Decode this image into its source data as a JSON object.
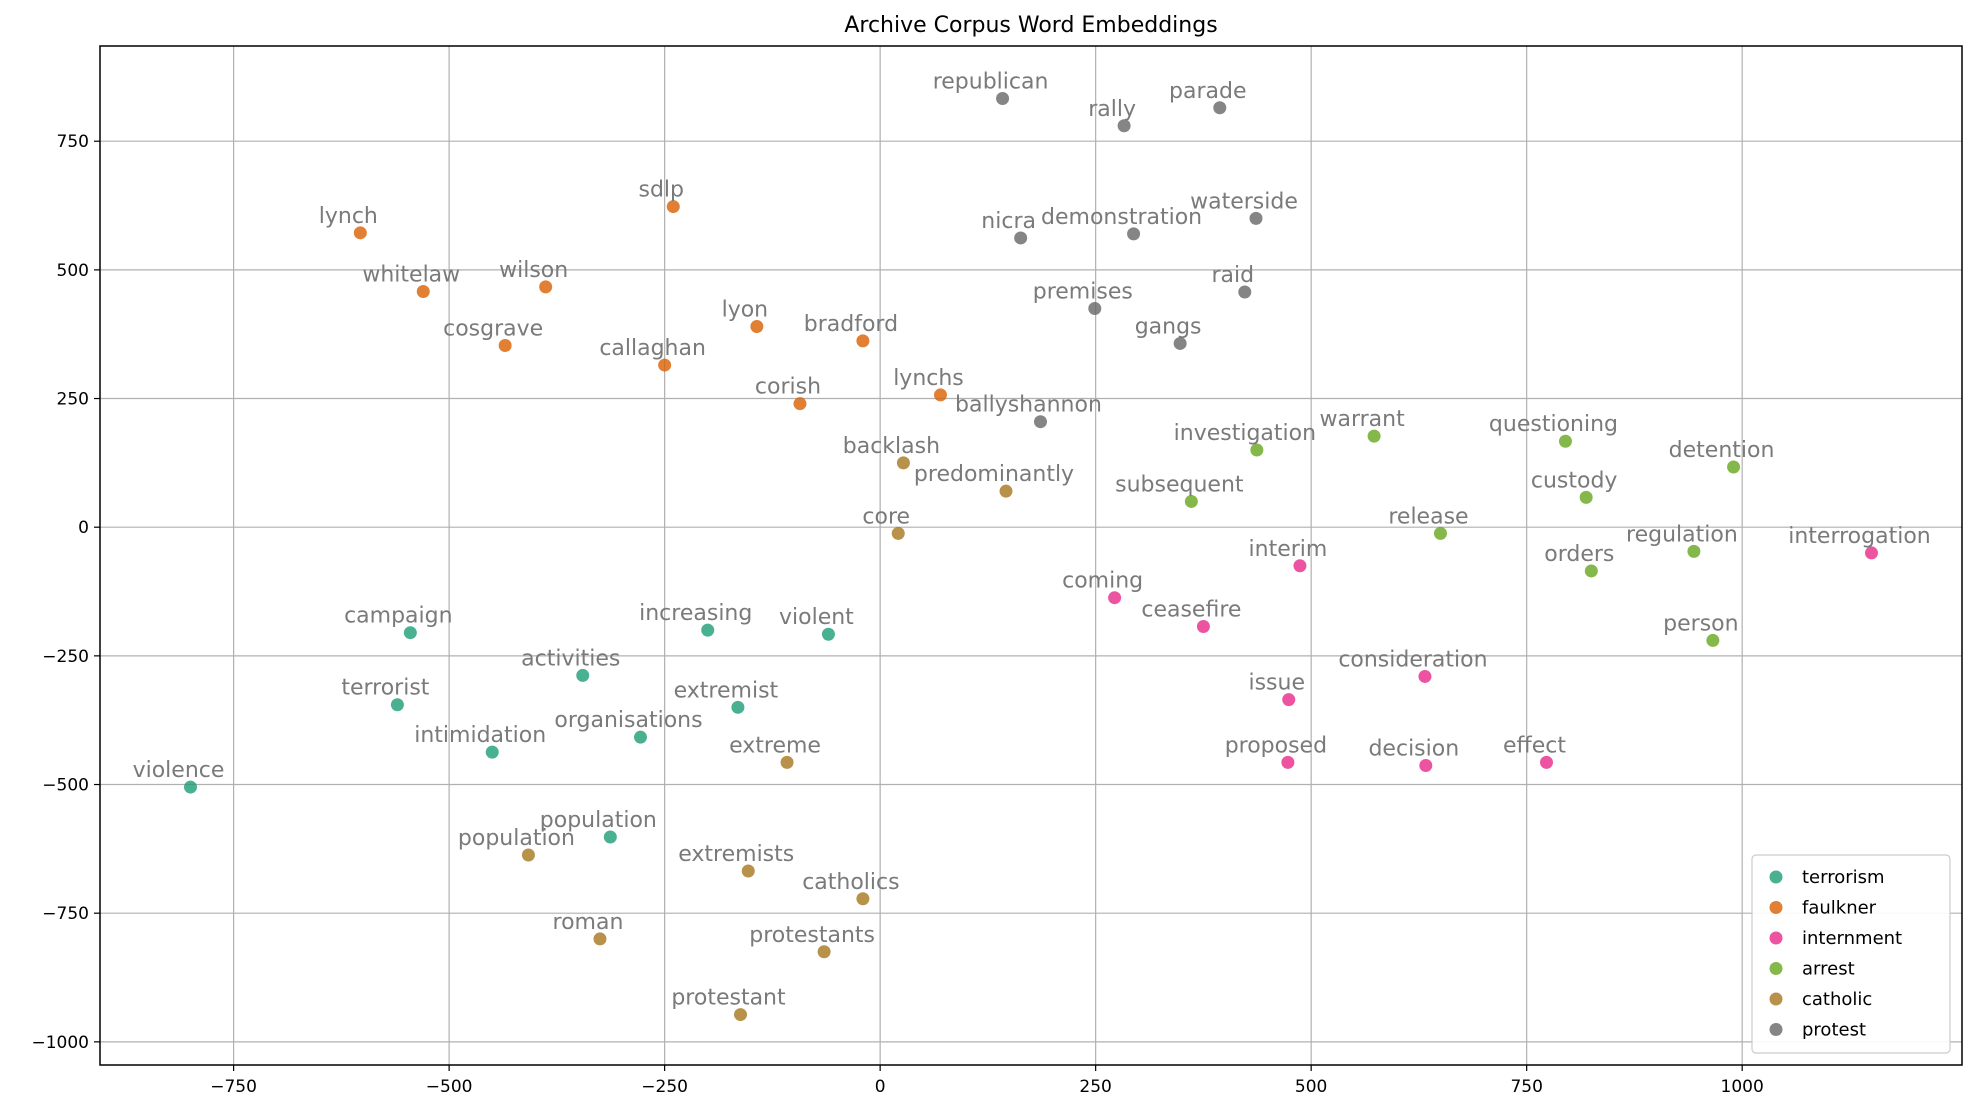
{
  "chart_data": {
    "type": "scatter",
    "title": "Archive Corpus Word Embeddings",
    "xlabel": "",
    "ylabel": "",
    "xlim": [
      -905,
      1255
    ],
    "ylim": [
      -1045,
      935
    ],
    "x_ticks": [
      -750,
      -500,
      -250,
      0,
      250,
      500,
      750,
      1000
    ],
    "y_ticks": [
      -1000,
      -750,
      -500,
      -250,
      0,
      250,
      500,
      750
    ],
    "x_tick_labels": [
      "−750",
      "−500",
      "−250",
      "0",
      "250",
      "500",
      "750",
      "1000"
    ],
    "y_tick_labels": [
      "−1000",
      "−750",
      "−500",
      "−250",
      "0",
      "250",
      "500",
      "750"
    ],
    "grid": true,
    "legend_position": "bottom-right",
    "series": [
      {
        "name": "terrorism",
        "color": "#1b9e77",
        "points": [
          {
            "label": "campaign",
            "x": -545,
            "y": -205
          },
          {
            "label": "terrorist",
            "x": -560,
            "y": -345
          },
          {
            "label": "activities",
            "x": -345,
            "y": -288
          },
          {
            "label": "intimidation",
            "x": -450,
            "y": -437
          },
          {
            "label": "organisations",
            "x": -278,
            "y": -408
          },
          {
            "label": "increasing",
            "x": -200,
            "y": -200
          },
          {
            "label": "extremist",
            "x": -165,
            "y": -350
          },
          {
            "label": "violent",
            "x": -60,
            "y": -208
          },
          {
            "label": "population",
            "x": -313,
            "y": -602
          },
          {
            "label": "violence",
            "x": -800,
            "y": -505
          }
        ]
      },
      {
        "name": "faulkner",
        "color": "#d95f02",
        "points": [
          {
            "label": "lynch",
            "x": -603,
            "y": 572
          },
          {
            "label": "whitelaw",
            "x": -530,
            "y": 458
          },
          {
            "label": "wilson",
            "x": -388,
            "y": 467
          },
          {
            "label": "cosgrave",
            "x": -435,
            "y": 353
          },
          {
            "label": "sdlp",
            "x": -240,
            "y": 623
          },
          {
            "label": "callaghan",
            "x": -250,
            "y": 315
          },
          {
            "label": "lyon",
            "x": -143,
            "y": 390
          },
          {
            "label": "bradford",
            "x": -20,
            "y": 362
          },
          {
            "label": "corish",
            "x": -93,
            "y": 240
          },
          {
            "label": "lynchs",
            "x": 70,
            "y": 257
          }
        ]
      },
      {
        "name": "internment",
        "color": "#e7298a",
        "points": [
          {
            "label": "interim",
            "x": 487,
            "y": -75
          },
          {
            "label": "coming",
            "x": 272,
            "y": -137
          },
          {
            "label": "ceasefire",
            "x": 375,
            "y": -193
          },
          {
            "label": "consideration",
            "x": 632,
            "y": -290
          },
          {
            "label": "issue",
            "x": 474,
            "y": -335
          },
          {
            "label": "proposed",
            "x": 473,
            "y": -457
          },
          {
            "label": "decision",
            "x": 633,
            "y": -463
          },
          {
            "label": "effect",
            "x": 773,
            "y": -457
          },
          {
            "label": "interrogation",
            "x": 1150,
            "y": -50
          }
        ]
      },
      {
        "name": "arrest",
        "color": "#66a61e",
        "points": [
          {
            "label": "investigation",
            "x": 437,
            "y": 150
          },
          {
            "label": "warrant",
            "x": 573,
            "y": 177
          },
          {
            "label": "questioning",
            "x": 795,
            "y": 167
          },
          {
            "label": "detention",
            "x": 990,
            "y": 117
          },
          {
            "label": "subsequent",
            "x": 361,
            "y": 50
          },
          {
            "label": "custody",
            "x": 819,
            "y": 58
          },
          {
            "label": "release",
            "x": 650,
            "y": -12
          },
          {
            "label": "regulation",
            "x": 944,
            "y": -47
          },
          {
            "label": "orders",
            "x": 825,
            "y": -85
          },
          {
            "label": "person",
            "x": 966,
            "y": -220
          }
        ]
      },
      {
        "name": "catholic",
        "color": "#a6761d",
        "points": [
          {
            "label": "backlash",
            "x": 27,
            "y": 125
          },
          {
            "label": "predominantly",
            "x": 146,
            "y": 70
          },
          {
            "label": "core",
            "x": 21,
            "y": -12
          },
          {
            "label": "extreme",
            "x": -108,
            "y": -457
          },
          {
            "label": "population",
            "x": -408,
            "y": -637
          },
          {
            "label": "extremists",
            "x": -153,
            "y": -668
          },
          {
            "label": "catholics",
            "x": -20,
            "y": -722
          },
          {
            "label": "roman",
            "x": -325,
            "y": -800
          },
          {
            "label": "protestants",
            "x": -65,
            "y": -825
          },
          {
            "label": "protestant",
            "x": -162,
            "y": -947
          }
        ]
      },
      {
        "name": "protest",
        "color": "#666666",
        "points": [
          {
            "label": "republican",
            "x": 142,
            "y": 833
          },
          {
            "label": "rally",
            "x": 283,
            "y": 780
          },
          {
            "label": "parade",
            "x": 394,
            "y": 815
          },
          {
            "label": "nicra",
            "x": 163,
            "y": 562
          },
          {
            "label": "demonstration",
            "x": 294,
            "y": 570
          },
          {
            "label": "waterside",
            "x": 436,
            "y": 600
          },
          {
            "label": "premises",
            "x": 249,
            "y": 425
          },
          {
            "label": "raid",
            "x": 423,
            "y": 457
          },
          {
            "label": "gangs",
            "x": 348,
            "y": 357
          },
          {
            "label": "ballyshannon",
            "x": 186,
            "y": 205
          }
        ]
      }
    ]
  }
}
